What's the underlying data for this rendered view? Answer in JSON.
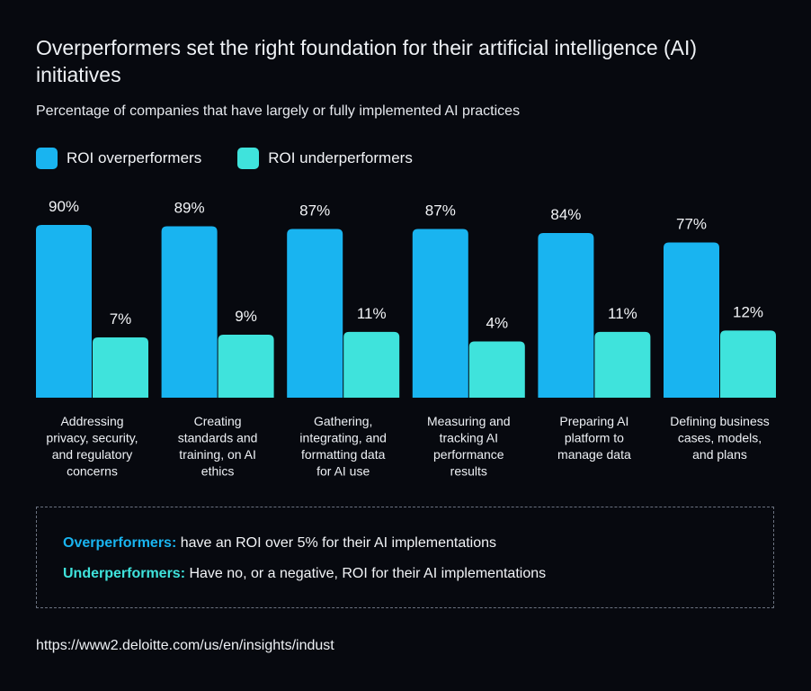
{
  "title": "Overperformers set the right foundation for their artificial intelligence (AI) initiatives",
  "subtitle": "Percentage of companies that have largely or fully implemented AI practices",
  "colors": {
    "over": "#19b4f0",
    "under": "#3fe3dc",
    "background": "#07090f"
  },
  "chart_data": {
    "type": "bar",
    "title": "Overperformers set the right foundation for their artificial intelligence (AI) initiatives",
    "subtitle": "Percentage of companies that have largely or fully implemented AI practices",
    "legend_position": "top-left",
    "grid": false,
    "categories": [
      [
        "Addressing",
        "privacy, security,",
        "and regulatory",
        "concerns"
      ],
      [
        "Creating",
        "standards and",
        "training, on AI",
        "ethics"
      ],
      [
        "Gathering,",
        "integrating, and",
        "formatting data",
        "for AI use"
      ],
      [
        "Measuring and",
        "tracking AI",
        "performance",
        "results"
      ],
      [
        "Preparing AI",
        "platform to",
        "manage data"
      ],
      [
        "Defining business",
        "cases, models,",
        "and plans"
      ]
    ],
    "series": [
      {
        "name": "ROI overperformers",
        "values": [
          90,
          89,
          87,
          87,
          84,
          77
        ]
      },
      {
        "name": "ROI underperformers",
        "values": [
          7,
          9,
          11,
          4,
          11,
          12
        ]
      }
    ],
    "unit": "%"
  },
  "notes": [
    {
      "term": "Overperformers:",
      "text": " have an ROI over 5% for their AI implementations"
    },
    {
      "term": "Underperformers:",
      "text": " Have no, or a negative, ROI for their AI implementations"
    }
  ],
  "source": "https://www2.deloitte.com/us/en/insights/indust"
}
